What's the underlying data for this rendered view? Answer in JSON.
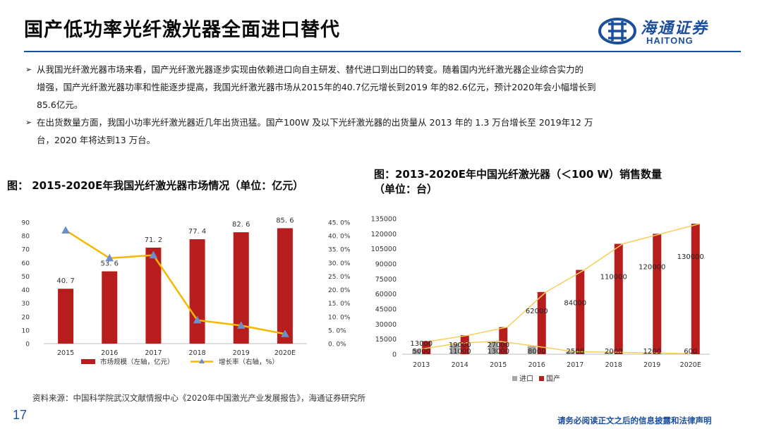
{
  "header": {
    "title": "国产低功率光纤激光器全面进口替代",
    "logo_cn": "海通证券",
    "logo_en": "HAITONG",
    "brand_color": "#1b4f9c"
  },
  "bullets": [
    [
      "从我国光纤激光器市场来看，国产光纤激光器逐步实现由依赖进口向自主研发、替代进口到出口的转变。随着国内光纤激光器企业综合实力的",
      "增强，国产光纤激光器功率和性能逐步提高，我国光纤激光器市场从2015年的40.7亿元增长到2019 年的82.6亿元，预计2020年会小幅增长到",
      "85.6亿元。"
    ],
    [
      "在出货数量方面，我国小功率光纤激光器近几年出货迅猛。国产100W 及以下光纤激光器的出货量从 2013 年的 1.3 万台增长至 2019年12 万",
      "台，2020 年将达到13 万台。"
    ]
  ],
  "chart1_title": "图： 2015-2020E年我国光纤激光器市场情况（单位：亿元）",
  "chart2_title_line1": "图：2013-2020E年中国光纤激光器（＜100 W）销售数量",
  "chart2_title_line2": "（单位：台）",
  "source": "资料来源：中国科学院武汉文献情报中心《2020年中国激光产业发展报告》，海通证券研究所",
  "page_number": "17",
  "disclaimer": "请务必阅读正文之后的信息披露和法律声明",
  "chart_data": [
    {
      "type": "bar",
      "categories": [
        "2015",
        "2016",
        "2017",
        "2018",
        "2019",
        "2020E"
      ],
      "series": [
        {
          "name": "市场规模（左轴，亿元）",
          "type": "bar",
          "axis": "left",
          "color": "#b81d1d",
          "values": [
            40.7,
            53.6,
            71.2,
            77.4,
            82.6,
            85.6
          ],
          "labels": [
            "40. 7",
            "53. 6",
            "71. 2",
            "77. 4",
            "82. 6",
            "85. 6"
          ]
        },
        {
          "name": "增长率（右轴，%）",
          "type": "line",
          "axis": "right",
          "color": "#f5b800",
          "values": [
            42.0,
            31.7,
            32.8,
            8.7,
            6.7,
            3.6
          ]
        }
      ],
      "ylim_left": [
        0,
        90
      ],
      "yticks_left": [
        "0",
        "10",
        "20",
        "30",
        "40",
        "50",
        "60",
        "70",
        "80",
        "90"
      ],
      "ylim_right": [
        0,
        45
      ],
      "yticks_right": [
        "0. 0%",
        "5. 0%",
        "10. 0%",
        "15. 0%",
        "20. 0%",
        "25. 0%",
        "30. 0%",
        "35. 0%",
        "40. 0%",
        "45. 0%"
      ],
      "legend_position": "bottom"
    },
    {
      "type": "bar",
      "categories": [
        "2013",
        "2014",
        "2015",
        "2016",
        "2017",
        "2018",
        "2019",
        "2020E"
      ],
      "series": [
        {
          "name": "进口",
          "color": "#a6a6a6",
          "values": [
            5000,
            11000,
            13000,
            8000,
            2500,
            2000,
            1200,
            600
          ],
          "labels": [
            "5000",
            "11000",
            "13000",
            "8000",
            "2500",
            "2000",
            "1200",
            "600"
          ]
        },
        {
          "name": "国产",
          "color": "#b81d1d",
          "values": [
            13000,
            19000,
            27000,
            62000,
            84000,
            110000,
            120000,
            130000
          ],
          "labels": [
            "13000",
            "19000",
            "27000",
            "62000",
            "84000",
            "110000",
            "120000",
            "130000"
          ]
        }
      ],
      "line_color": "#f5cf5a",
      "ylim": [
        0,
        135000
      ],
      "yticks": [
        "0",
        "15000",
        "30000",
        "45000",
        "60000",
        "75000",
        "90000",
        "105000",
        "120000",
        "135000"
      ],
      "legend_position": "bottom"
    }
  ]
}
